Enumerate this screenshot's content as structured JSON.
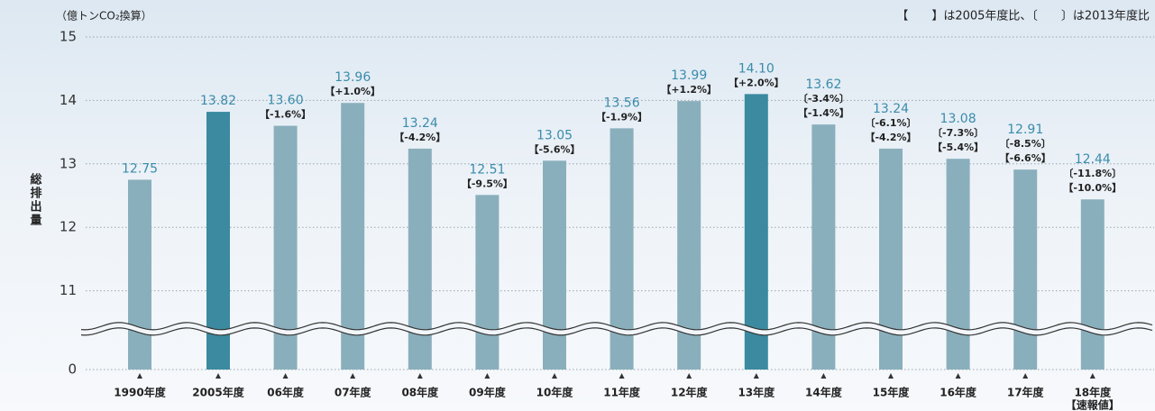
{
  "chart_data": {
    "type": "bar",
    "unit_label": "（億トンCO₂換算）",
    "y_axis_title": "総排出量",
    "legend_text": "【　　】は2005年度比、〔　　〕は2013年度比",
    "categories": [
      "1990年度",
      "2005年度",
      "06年度",
      "07年度",
      "08年度",
      "09年度",
      "10年度",
      "11年度",
      "12年度",
      "13年度",
      "14年度",
      "15年度",
      "16年度",
      "17年度",
      "18年度"
    ],
    "category_note": "【速報値】",
    "values": [
      12.75,
      13.82,
      13.6,
      13.96,
      13.24,
      12.51,
      13.05,
      13.56,
      13.99,
      14.1,
      13.62,
      13.24,
      13.08,
      12.91,
      12.44
    ],
    "value_labels": [
      "12.75",
      "13.82",
      "13.60",
      "13.96",
      "13.24",
      "12.51",
      "13.05",
      "13.56",
      "13.99",
      "14.10",
      "13.62",
      "13.24",
      "13.08",
      "12.91",
      "12.44"
    ],
    "vs_2013_labels": [
      null,
      null,
      null,
      null,
      null,
      null,
      null,
      null,
      null,
      null,
      "〔-3.4%〕",
      "〔-6.1%〕",
      "〔-7.3%〕",
      "〔-8.5%〕",
      "〔-11.8%〕"
    ],
    "vs_2005_labels": [
      null,
      null,
      "【-1.6%】",
      "【+1.0%】",
      "【-4.2%】",
      "【-9.5%】",
      "【-5.6%】",
      "【-1.9%】",
      "【+1.2%】",
      "【+2.0%】",
      "【-1.4%】",
      "【-4.2%】",
      "【-5.4%】",
      "【-6.6%】",
      "【-10.0%】"
    ],
    "bar_colors": [
      "#8aafbc",
      "#3b8a9f",
      "#8aafbc",
      "#8aafbc",
      "#8aafbc",
      "#8aafbc",
      "#8aafbc",
      "#8aafbc",
      "#8aafbc",
      "#3b8a9f",
      "#8aafbc",
      "#8aafbc",
      "#8aafbc",
      "#8aafbc",
      "#8aafbc"
    ],
    "value_label_color": "#3a8cab",
    "ylim": [
      0,
      15
    ],
    "axis_break": [
      0,
      10.4
    ],
    "yticks": [
      0,
      11,
      12,
      13,
      14,
      15
    ],
    "grid": true
  }
}
